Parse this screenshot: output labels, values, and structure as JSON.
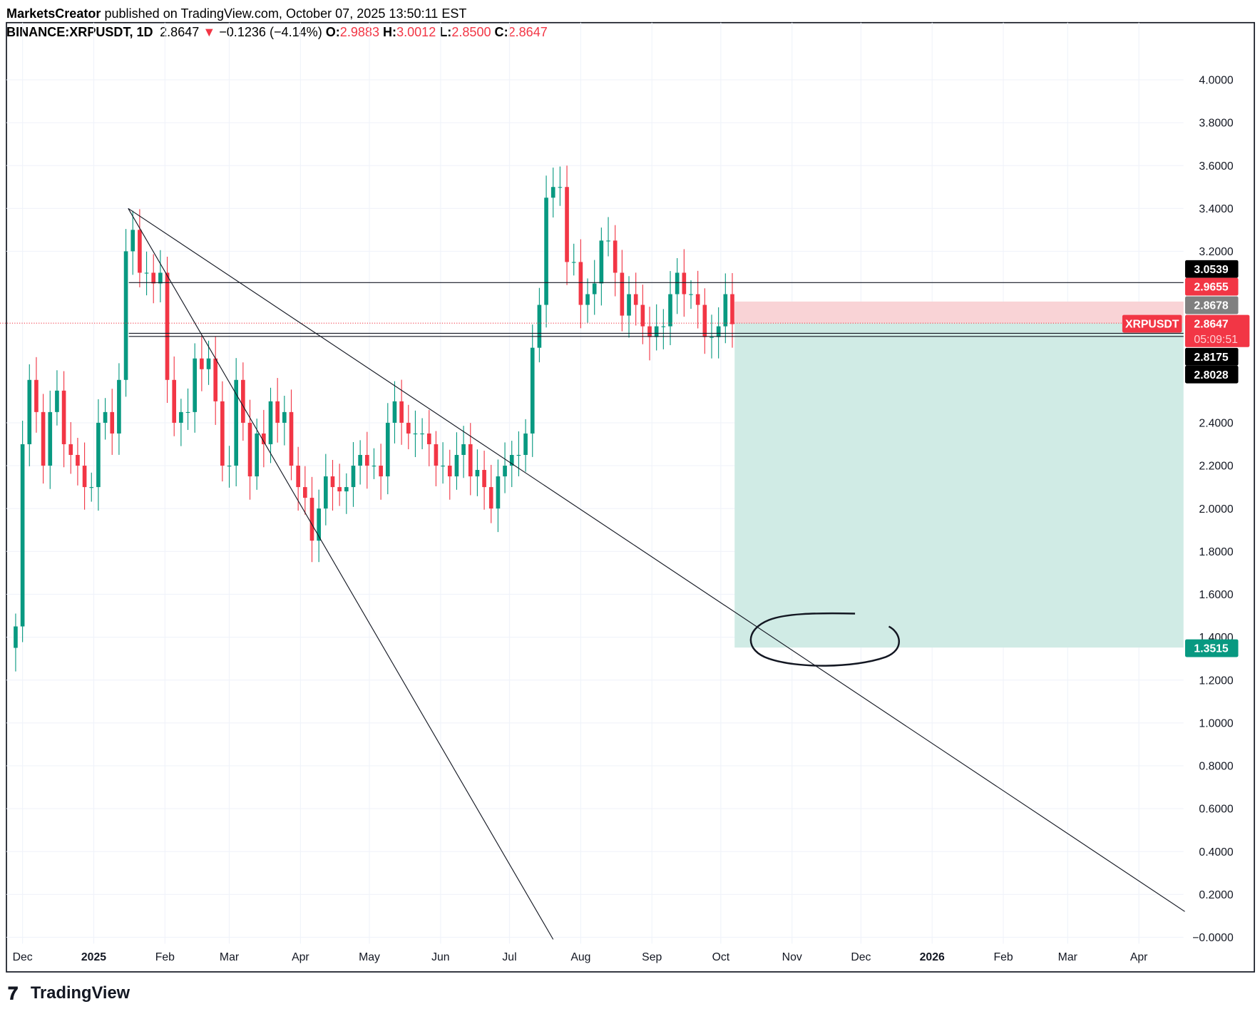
{
  "header": {
    "author": "MarketsCreator",
    "published": " published on TradingView.com, October 07, 2025 13:50:11 EST",
    "symbol": "BINANCE:XRPUSDT, 1D",
    "last": "2.8647",
    "change": "−0.1236 (−4.14%)",
    "o_label": "O:",
    "o": "2.9883",
    "h_label": "H:",
    "h": "3.0012",
    "l_label": "L:",
    "l": "2.8500",
    "c_label": "C:",
    "c": "2.8647"
  },
  "colors": {
    "up": "#089981",
    "down": "#f23645",
    "stop_zone": "#f9d3d6",
    "target_zone": "#d0ebe5"
  },
  "logo": "TradingView",
  "chart_data": {
    "type": "candlestick",
    "interval": "1D",
    "series_sampling": "every 3 days from 2024-11-28",
    "closes": [
      1.45,
      2.3,
      2.6,
      2.45,
      2.2,
      2.45,
      2.55,
      2.3,
      2.25,
      2.2,
      2.1,
      2.1,
      2.4,
      2.45,
      2.35,
      2.6,
      3.2,
      3.3,
      3.1,
      3.1,
      3.05,
      3.1,
      2.6,
      2.4,
      2.45,
      2.45,
      2.7,
      2.65,
      2.7,
      2.5,
      2.2,
      2.2,
      2.6,
      2.4,
      2.15,
      2.35,
      2.3,
      2.5,
      2.4,
      2.45,
      2.2,
      2.1,
      2.05,
      1.85,
      2.0,
      2.15,
      2.1,
      2.08,
      2.1,
      2.2,
      2.25,
      2.2,
      2.2,
      2.15,
      2.4,
      2.5,
      2.4,
      2.35,
      2.35,
      2.35,
      2.3,
      2.2,
      2.2,
      2.15,
      2.25,
      2.3,
      2.15,
      2.18,
      2.1,
      2.0,
      2.15,
      2.2,
      2.25,
      2.25,
      2.35,
      2.75,
      2.95,
      3.45,
      3.5,
      3.5,
      3.15,
      3.15,
      2.95,
      3.0,
      3.05,
      3.25,
      3.25,
      3.1,
      2.9,
      3.0,
      2.95,
      2.85,
      2.8,
      2.85,
      2.85,
      3.0,
      3.1,
      3.0,
      3.0,
      2.95,
      2.8,
      2.8,
      2.85,
      3.0,
      2.86
    ],
    "ylim": [
      0,
      4
    ],
    "y_ticks": [
      "4.0000",
      "3.8000",
      "3.6000",
      "3.4000",
      "3.2000",
      "2.4000",
      "2.2000",
      "2.0000",
      "1.8000",
      "1.6000",
      "1.4000",
      "1.2000",
      "1.0000",
      "0.8000",
      "0.6000",
      "0.4000",
      "0.2000",
      "−0.0000"
    ],
    "y_tick_values": [
      4.0,
      3.8,
      3.6,
      3.4,
      3.2,
      2.4,
      2.2,
      2.0,
      1.8,
      1.6,
      1.4,
      1.2,
      1.0,
      0.8,
      0.6,
      0.4,
      0.2,
      0.0
    ],
    "x_ticks": [
      "Dec",
      "2025",
      "Feb",
      "Mar",
      "Apr",
      "May",
      "Jun",
      "Jul",
      "Aug",
      "Sep",
      "Oct",
      "Nov",
      "Dec",
      "2026",
      "Feb",
      "Mar",
      "Apr"
    ],
    "x_tick_dates": [
      "2024-12-01",
      "2025-01-01",
      "2025-02-01",
      "2025-03-01",
      "2025-04-01",
      "2025-05-01",
      "2025-06-01",
      "2025-07-01",
      "2025-08-01",
      "2025-09-01",
      "2025-10-01",
      "2025-11-01",
      "2025-12-01",
      "2026-01-01",
      "2026-02-01",
      "2026-03-01",
      "2026-04-01"
    ],
    "horizontal_levels": [
      3.0539,
      2.8175,
      2.8028
    ],
    "short_position": {
      "entry": 2.8647,
      "stop": 2.9655,
      "target": 1.3515,
      "start": "2025-10-07"
    },
    "trendlines": [
      {
        "from": {
          "date": "2025-01-16",
          "price": 3.4
        },
        "to": {
          "date": "2026-04-21",
          "price": 0.12
        }
      },
      {
        "from": {
          "date": "2025-01-16",
          "price": 3.4
        },
        "to": {
          "date": "2025-07-20",
          "price": -0.01
        }
      }
    ],
    "price_labels": [
      {
        "text": "3.0539",
        "price": 3.0539,
        "bg": "#000000"
      },
      {
        "text": "2.9655",
        "price": 2.9655,
        "bg": "#f23645"
      },
      {
        "text": "2.8678",
        "price": 2.8678,
        "bg": "#808080"
      },
      {
        "text": "2.8647",
        "price": 2.8647,
        "bg": "#f23645",
        "timer": "05:09:51",
        "tag": "XRPUSDT"
      },
      {
        "text": "2.8175",
        "price": 2.8175,
        "bg": "#000000"
      },
      {
        "text": "2.8028",
        "price": 2.8028,
        "bg": "#000000"
      },
      {
        "text": "1.3515",
        "price": 1.3515,
        "bg": "#089981"
      }
    ]
  }
}
